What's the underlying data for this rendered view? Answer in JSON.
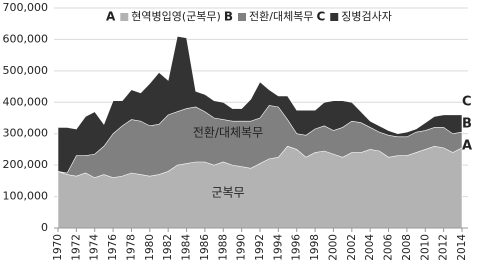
{
  "chart_data": {
    "type": "area",
    "x": [
      1970,
      1971,
      1972,
      1973,
      1974,
      1975,
      1976,
      1977,
      1978,
      1979,
      1980,
      1981,
      1982,
      1983,
      1984,
      1985,
      1986,
      1987,
      1988,
      1989,
      1990,
      1991,
      1992,
      1993,
      1994,
      1995,
      1996,
      1997,
      1998,
      1999,
      2000,
      2001,
      2002,
      2003,
      2004,
      2005,
      2006,
      2007,
      2008,
      2009,
      2010,
      2011,
      2012,
      2013,
      2014
    ],
    "series": [
      {
        "key": "C",
        "name": "징병검사자",
        "color": "#333333",
        "values": [
          320000,
          320000,
          315000,
          355000,
          370000,
          330000,
          405000,
          405000,
          440000,
          430000,
          460000,
          495000,
          470000,
          610000,
          605000,
          435000,
          425000,
          405000,
          400000,
          380000,
          380000,
          410000,
          465000,
          440000,
          420000,
          420000,
          375000,
          375000,
          375000,
          400000,
          405000,
          405000,
          400000,
          370000,
          340000,
          325000,
          310000,
          300000,
          305000,
          315000,
          335000,
          355000,
          360000,
          360000,
          360000
        ]
      },
      {
        "key": "B",
        "name": "전환/대체복무",
        "color": "#808080",
        "values": [
          180000,
          175000,
          230000,
          230000,
          235000,
          260000,
          300000,
          325000,
          345000,
          340000,
          325000,
          330000,
          360000,
          370000,
          380000,
          385000,
          370000,
          350000,
          345000,
          340000,
          340000,
          340000,
          350000,
          390000,
          385000,
          345000,
          300000,
          295000,
          315000,
          325000,
          310000,
          320000,
          340000,
          335000,
          320000,
          305000,
          295000,
          290000,
          290000,
          305000,
          310000,
          320000,
          320000,
          300000,
          305000
        ]
      },
      {
        "key": "A",
        "name": "현역병입영(군복무)",
        "color": "#b3b3b3",
        "values": [
          180000,
          170000,
          165000,
          175000,
          160000,
          170000,
          160000,
          165000,
          175000,
          170000,
          165000,
          170000,
          180000,
          200000,
          205000,
          210000,
          210000,
          200000,
          210000,
          200000,
          195000,
          190000,
          205000,
          220000,
          225000,
          260000,
          250000,
          225000,
          240000,
          245000,
          235000,
          225000,
          240000,
          240000,
          250000,
          245000,
          225000,
          230000,
          230000,
          240000,
          250000,
          260000,
          255000,
          240000,
          255000
        ]
      }
    ],
    "annotations": [
      "전환/대체복무",
      "군복무"
    ],
    "xlim": [
      1970,
      2014
    ],
    "xticks": [
      1970,
      1972,
      1974,
      1976,
      1978,
      1980,
      1982,
      1984,
      1986,
      1988,
      1990,
      1992,
      1994,
      1996,
      1998,
      2000,
      2002,
      2004,
      2006,
      2008,
      2010,
      2012,
      2014
    ],
    "ylim": [
      0,
      700000
    ],
    "yticks": [
      0,
      {
        "value": 100000,
        "label": "100,000"
      },
      {
        "value": 200000,
        "label": "200,000"
      },
      {
        "value": 300000,
        "label": "300,000"
      },
      {
        "value": 400000,
        "label": "400,000"
      },
      {
        "value": 500000,
        "label": "500,000"
      },
      {
        "value": 600000,
        "label": "600,000"
      },
      {
        "value": 700000,
        "label": "700,000"
      }
    ],
    "grid": true
  }
}
